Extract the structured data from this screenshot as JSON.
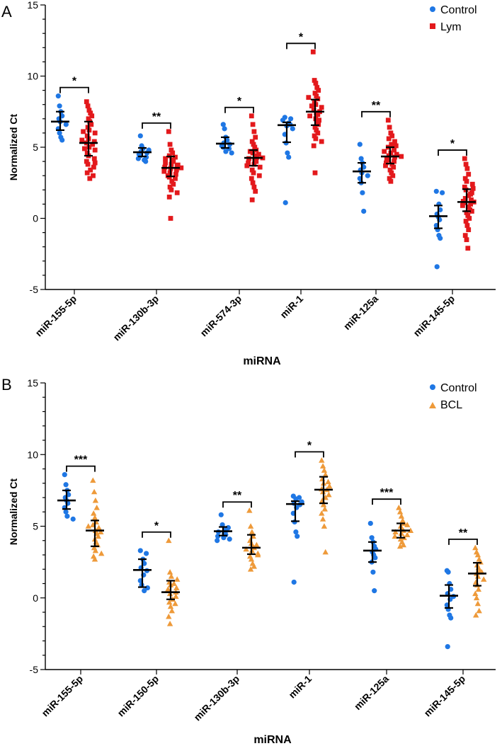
{
  "colors": {
    "control": "#1f77e4",
    "lym": "#e3191c",
    "bcl": "#ee9a3a",
    "axis": "#000000"
  },
  "chart_data": [
    {
      "panel_label": "A",
      "type": "scatter",
      "xlabel": "miRNA",
      "ylabel": "Normalized Ct",
      "ylim": [
        -5,
        15
      ],
      "yticks": [
        "-5",
        "0",
        "5",
        "10",
        "15"
      ],
      "categories": [
        "miR-155-5p",
        "miR-130b-3p",
        "miR-574-3p",
        "miR-1",
        "miR-125a",
        "miR-145-5p"
      ],
      "legend": [
        {
          "name": "Control",
          "marker": "circle",
          "color": "#1f77e4"
        },
        {
          "name": "Lym",
          "marker": "square",
          "color": "#e3191c"
        }
      ],
      "series": [
        {
          "name": "Control",
          "marker": "circle",
          "color": "#1f77e4",
          "medians": [
            6.8,
            4.65,
            5.25,
            6.55,
            3.3,
            0.15
          ],
          "q1": [
            6.2,
            4.35,
            4.95,
            5.35,
            2.5,
            -0.7
          ],
          "q3": [
            7.5,
            4.95,
            5.7,
            6.75,
            3.9,
            0.9
          ],
          "points": [
            [
              8.6,
              7.9,
              7.5,
              7.2,
              7.0,
              6.8,
              6.6,
              6.3,
              6.0,
              5.7,
              5.5
            ],
            [
              5.8,
              5.1,
              4.9,
              4.8,
              4.7,
              4.6,
              4.5,
              4.4,
              4.3,
              4.2,
              4.1,
              4.0
            ],
            [
              6.6,
              6.3,
              5.7,
              5.5,
              5.3,
              5.2,
              5.1,
              5.0,
              4.9,
              4.7,
              4.6
            ],
            [
              7.1,
              7.0,
              6.9,
              6.7,
              6.6,
              6.5,
              6.3,
              5.9,
              5.3,
              4.6,
              4.3,
              1.1
            ],
            [
              5.2,
              4.2,
              3.9,
              3.6,
              3.4,
              3.2,
              3.0,
              2.8,
              2.5,
              1.8,
              0.5
            ],
            [
              1.9,
              1.8,
              1.0,
              0.6,
              0.3,
              0.1,
              -0.1,
              -0.5,
              -0.8,
              -1.2,
              -1.4,
              -3.4
            ]
          ]
        },
        {
          "name": "Lym",
          "marker": "square",
          "color": "#e3191c",
          "medians": [
            5.3,
            3.55,
            4.25,
            7.5,
            4.35,
            1.15
          ],
          "q1": [
            4.4,
            2.95,
            3.7,
            6.55,
            3.85,
            0.5
          ],
          "q3": [
            6.8,
            4.35,
            4.8,
            8.35,
            5.0,
            2.05
          ],
          "points": [
            [
              8.2,
              7.9,
              7.6,
              7.4,
              7.2,
              7.0,
              6.8,
              6.6,
              6.4,
              6.2,
              6.0,
              5.8,
              5.6,
              5.4,
              5.3,
              5.2,
              5.0,
              4.8,
              4.6,
              4.4,
              4.2,
              4.0,
              3.8,
              3.6,
              3.4,
              3.2,
              3.0,
              2.8,
              5.5,
              6.1,
              4.9,
              3.9
            ],
            [
              6.1,
              5.2,
              4.8,
              4.6,
              4.4,
              4.3,
              4.1,
              4.0,
              3.9,
              3.8,
              3.7,
              3.6,
              3.5,
              3.4,
              3.3,
              3.2,
              3.1,
              3.0,
              2.9,
              2.8,
              2.6,
              2.4,
              2.2,
              2.0,
              1.8,
              1.5,
              0.0,
              3.55,
              3.75,
              4.2
            ],
            [
              7.2,
              6.6,
              6.1,
              5.7,
              5.4,
              5.2,
              5.0,
              4.8,
              4.6,
              4.5,
              4.4,
              4.3,
              4.2,
              4.1,
              4.0,
              3.9,
              3.8,
              3.6,
              3.4,
              3.2,
              3.0,
              2.8,
              2.5,
              2.2,
              1.9,
              1.3,
              4.25,
              4.7,
              3.7
            ],
            [
              11.7,
              9.7,
              9.5,
              9.2,
              9.0,
              8.8,
              8.6,
              8.4,
              8.2,
              8.0,
              7.8,
              7.6,
              7.5,
              7.4,
              7.3,
              7.2,
              7.0,
              6.8,
              6.6,
              6.4,
              6.2,
              6.0,
              5.8,
              5.6,
              5.4,
              5.1,
              3.2,
              7.9,
              8.5,
              6.9
            ],
            [
              6.9,
              6.4,
              6.0,
              5.8,
              5.6,
              5.4,
              5.2,
              5.0,
              4.8,
              4.6,
              4.5,
              4.4,
              4.3,
              4.2,
              4.1,
              4.0,
              3.9,
              3.8,
              3.6,
              3.4,
              3.2,
              3.0,
              2.8,
              2.6,
              4.35,
              4.7,
              3.7,
              5.1
            ],
            [
              4.2,
              3.8,
              3.5,
              3.1,
              2.8,
              2.6,
              2.4,
              2.2,
              2.0,
              1.8,
              1.6,
              1.4,
              1.3,
              1.2,
              1.1,
              1.0,
              0.9,
              0.8,
              0.6,
              0.4,
              0.2,
              0.0,
              -0.2,
              -0.5,
              -0.8,
              -1.2,
              -1.5,
              -2.1,
              1.15,
              1.7,
              0.5,
              2.1
            ]
          ]
        }
      ],
      "significance": [
        "*",
        "**",
        "*",
        "*",
        "**",
        "*"
      ]
    },
    {
      "panel_label": "B",
      "type": "scatter",
      "xlabel": "miRNA",
      "ylabel": "Normalized Ct",
      "ylim": [
        -5,
        15
      ],
      "yticks": [
        "-5",
        "0",
        "5",
        "10",
        "15"
      ],
      "categories": [
        "miR-155-5p",
        "miR-150-5p",
        "miR-130b-3p",
        "miR-1",
        "miR-125a",
        "miR-145-5p"
      ],
      "legend": [
        {
          "name": "Control",
          "marker": "circle",
          "color": "#1f77e4"
        },
        {
          "name": "BCL",
          "marker": "triangle",
          "color": "#ee9a3a"
        }
      ],
      "series": [
        {
          "name": "Control",
          "marker": "circle",
          "color": "#1f77e4",
          "medians": [
            6.8,
            1.95,
            4.65,
            6.55,
            3.3,
            0.15
          ],
          "q1": [
            6.2,
            0.75,
            4.35,
            5.35,
            2.5,
            -0.7
          ],
          "q3": [
            7.5,
            2.7,
            4.95,
            6.75,
            3.9,
            0.9
          ],
          "points": [
            [
              8.6,
              7.9,
              7.5,
              7.2,
              7.0,
              6.8,
              6.6,
              6.3,
              6.0,
              5.7,
              5.5
            ],
            [
              3.3,
              3.1,
              2.7,
              2.4,
              2.1,
              1.9,
              1.6,
              1.2,
              0.9,
              0.7,
              0.5
            ],
            [
              5.8,
              5.1,
              4.9,
              4.8,
              4.7,
              4.6,
              4.5,
              4.4,
              4.3,
              4.2,
              4.1,
              4.0
            ],
            [
              7.1,
              7.0,
              6.9,
              6.7,
              6.6,
              6.5,
              6.3,
              5.9,
              5.3,
              4.6,
              4.3,
              1.1
            ],
            [
              5.2,
              4.2,
              3.9,
              3.6,
              3.4,
              3.2,
              3.0,
              2.8,
              2.5,
              1.8,
              0.5
            ],
            [
              1.9,
              1.8,
              1.0,
              0.6,
              0.3,
              0.1,
              -0.1,
              -0.5,
              -0.8,
              -1.2,
              -1.4,
              -3.4
            ]
          ]
        },
        {
          "name": "BCL",
          "marker": "triangle",
          "color": "#ee9a3a",
          "medians": [
            4.7,
            0.4,
            3.5,
            7.55,
            4.7,
            1.7
          ],
          "q1": [
            3.6,
            -0.1,
            3.05,
            6.6,
            4.2,
            0.85
          ],
          "q3": [
            5.4,
            1.2,
            4.4,
            8.45,
            5.2,
            2.45
          ],
          "points": [
            [
              8.2,
              7.4,
              6.8,
              6.3,
              5.9,
              5.6,
              5.3,
              5.1,
              4.9,
              4.7,
              4.5,
              4.3,
              4.1,
              3.9,
              3.7,
              3.5,
              3.3,
              3.1,
              2.9,
              2.7,
              4.6,
              5.0
            ],
            [
              4.0,
              1.8,
              1.5,
              1.3,
              1.1,
              0.9,
              0.7,
              0.5,
              0.3,
              0.1,
              -0.1,
              -0.3,
              -0.6,
              -0.9,
              -1.3,
              -1.8,
              0.4,
              0.6,
              1.0,
              -0.4
            ],
            [
              6.1,
              5.0,
              4.6,
              4.3,
              4.0,
              3.8,
              3.6,
              3.5,
              3.4,
              3.3,
              3.1,
              2.9,
              2.7,
              2.4,
              2.2,
              2.0,
              3.7,
              3.0
            ],
            [
              9.6,
              9.2,
              8.9,
              8.6,
              8.3,
              8.0,
              7.8,
              7.6,
              7.4,
              7.2,
              7.0,
              6.8,
              6.5,
              6.2,
              5.9,
              5.5,
              5.0,
              3.2,
              7.55,
              8.1
            ],
            [
              6.3,
              6.0,
              5.7,
              5.4,
              5.2,
              5.0,
              4.8,
              4.7,
              4.6,
              4.5,
              4.4,
              4.3,
              4.1,
              3.9,
              3.7,
              3.6,
              4.7,
              5.1,
              4.2
            ],
            [
              3.5,
              3.2,
              3.0,
              2.7,
              2.5,
              2.3,
              2.1,
              1.9,
              1.7,
              1.5,
              1.3,
              1.1,
              0.9,
              0.6,
              0.3,
              0.0,
              -0.4,
              -0.9,
              -1.2,
              1.8
            ]
          ]
        }
      ],
      "significance": [
        "***",
        "*",
        "**",
        "*",
        "***",
        "**"
      ]
    }
  ]
}
